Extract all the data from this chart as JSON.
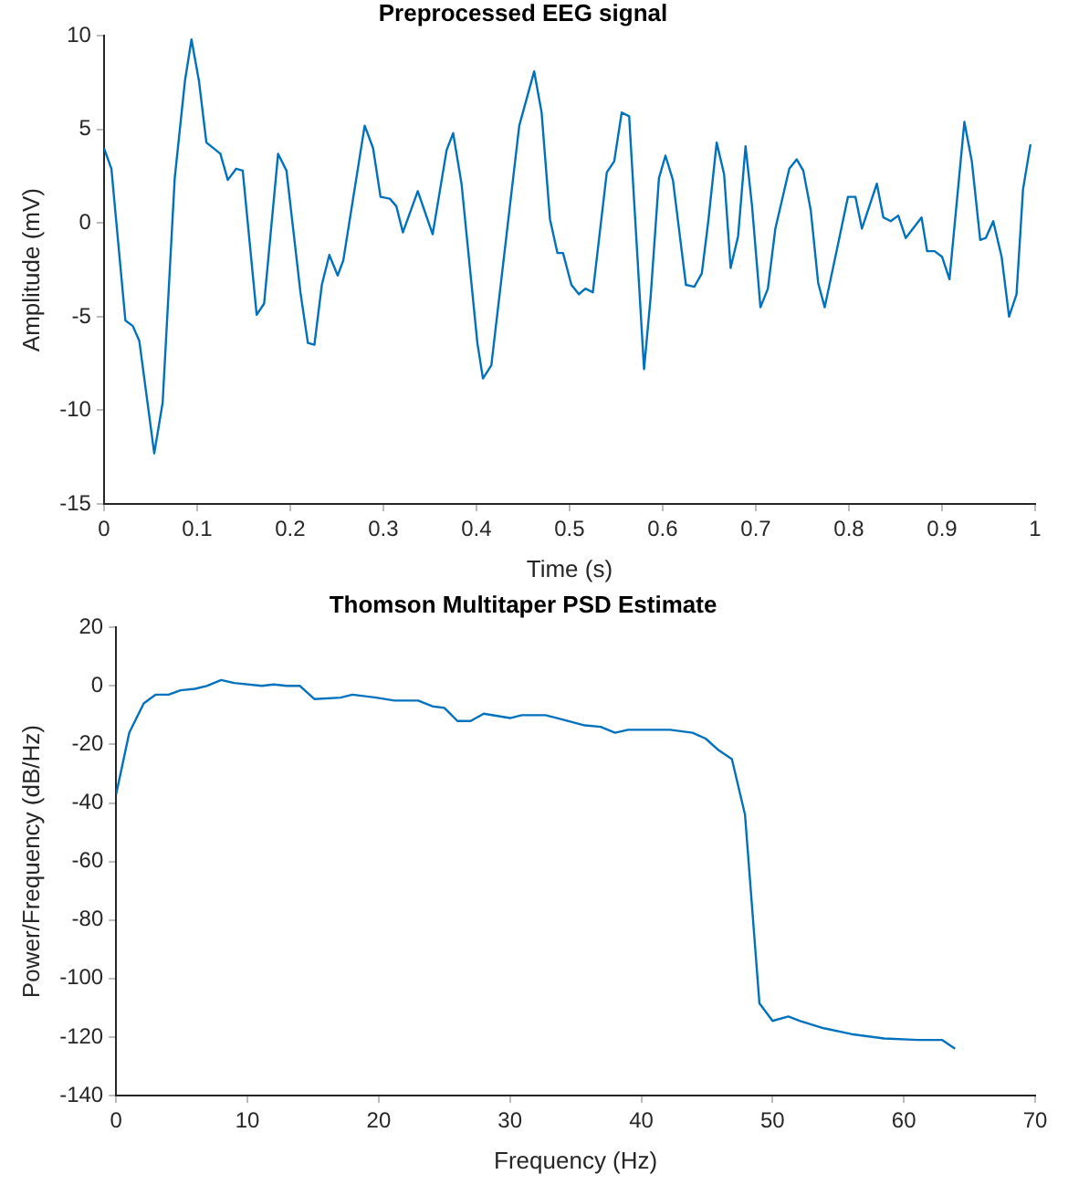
{
  "chart_data": [
    {
      "type": "line",
      "title": "Preprocessed EEG signal",
      "xlabel": "Time (s)",
      "ylabel": "Amplitude (mV)",
      "x": [
        0,
        0.008,
        0.023,
        0.031,
        0.038,
        0.054,
        0.063,
        0.076,
        0.087,
        0.094,
        0.102,
        0.11,
        0.125,
        0.133,
        0.142,
        0.149,
        0.164,
        0.172,
        0.187,
        0.196,
        0.211,
        0.219,
        0.226,
        0.234,
        0.242,
        0.251,
        0.257,
        0.28,
        0.289,
        0.297,
        0.307,
        0.314,
        0.321,
        0.337,
        0.353,
        0.368,
        0.375,
        0.384,
        0.401,
        0.407,
        0.416,
        0.446,
        0.462,
        0.47,
        0.479,
        0.487,
        0.493,
        0.502,
        0.51,
        0.517,
        0.525,
        0.54,
        0.548,
        0.556,
        0.564,
        0.58,
        0.587,
        0.596,
        0.603,
        0.611,
        0.625,
        0.634,
        0.642,
        0.649,
        0.658,
        0.666,
        0.673,
        0.681,
        0.689,
        0.696,
        0.705,
        0.713,
        0.721,
        0.736,
        0.744,
        0.751,
        0.759,
        0.767,
        0.774,
        0.791,
        0.799,
        0.807,
        0.814,
        0.83,
        0.837,
        0.845,
        0.853,
        0.861,
        0.878,
        0.884,
        0.892,
        0.9,
        0.908,
        0.924,
        0.932,
        0.941,
        0.947,
        0.955,
        0.964,
        0.972,
        0.98,
        0.987,
        0.995
      ],
      "series": [
        {
          "color": "#0072bd",
          "values": [
            4.0,
            2.9,
            -5.2,
            -5.5,
            -6.3,
            -12.3,
            -9.6,
            2.4,
            7.6,
            9.8,
            7.6,
            4.3,
            3.7,
            2.3,
            2.9,
            2.8,
            -4.9,
            -4.3,
            3.7,
            2.8,
            -3.7,
            -6.4,
            -6.5,
            -3.3,
            -1.7,
            -2.8,
            -2.0,
            5.2,
            4.0,
            1.4,
            1.3,
            0.9,
            -0.5,
            1.7,
            -0.6,
            3.9,
            4.8,
            2.1,
            -6.4,
            -8.3,
            -7.6,
            5.2,
            8.1,
            5.9,
            0.2,
            -1.6,
            -1.6,
            -3.3,
            -3.8,
            -3.5,
            -3.7,
            2.7,
            3.3,
            5.9,
            5.7,
            -7.8,
            -4.0,
            2.4,
            3.6,
            2.3,
            -3.3,
            -3.4,
            -2.7,
            0.1,
            4.3,
            2.6,
            -2.4,
            -0.7,
            4.1,
            0.9,
            -4.5,
            -3.5,
            -0.3,
            2.9,
            3.4,
            2.8,
            0.7,
            -3.2,
            -4.5,
            -0.5,
            1.4,
            1.4,
            -0.3,
            2.1,
            0.3,
            0.1,
            0.4,
            -0.8,
            0.3,
            -1.5,
            -1.5,
            -1.8,
            -3.0,
            5.4,
            3.3,
            -0.9,
            -0.8,
            0.1,
            -1.8,
            -5.0,
            -3.8,
            1.8,
            4.2
          ]
        }
      ],
      "xlim": [
        0,
        1
      ],
      "xticks": [
        0,
        0.1,
        0.2,
        0.3,
        0.4,
        0.5,
        0.6,
        0.7,
        0.8,
        0.9,
        1
      ],
      "ylim": [
        -15,
        10
      ],
      "yticks": [
        -15,
        -10,
        -5,
        0,
        5,
        10
      ],
      "grid": false,
      "legend": false,
      "marker": "none",
      "line_style": "solid"
    },
    {
      "type": "line",
      "title": "Thomson Multitaper PSD Estimate",
      "xlabel": "Frequency (Hz)",
      "ylabel": "Power/Frequency (dB/Hz)",
      "x": [
        0,
        1.0,
        2.1,
        3.0,
        4.0,
        4.9,
        6.0,
        6.9,
        8.0,
        9.0,
        11.1,
        12.0,
        13.0,
        14.0,
        15.1,
        17.1,
        18.0,
        19.8,
        21.2,
        23.0,
        24.1,
        25.0,
        26.0,
        27.0,
        28.0,
        30.0,
        30.9,
        32.7,
        33.6,
        35.7,
        36.9,
        38.0,
        39.0,
        39.9,
        42.2,
        43.9,
        44.9,
        45.9,
        46.9,
        47.9,
        49.0,
        50.0,
        51.2,
        52.1,
        53.9,
        56.0,
        58.5,
        61.1,
        62.9,
        63.9
      ],
      "series": [
        {
          "color": "#0072bd",
          "values": [
            -37,
            -16,
            -6,
            -3,
            -3,
            -1.5,
            -1,
            0,
            2,
            1,
            0,
            0.5,
            0,
            0,
            -4.5,
            -4,
            -3,
            -4,
            -5,
            -5,
            -7,
            -7.5,
            -12,
            -12,
            -9.5,
            -11,
            -10,
            -10,
            -11,
            -13.5,
            -14,
            -16,
            -15,
            -15,
            -15,
            -16,
            -18,
            -22,
            -25,
            -44,
            -108.5,
            -114.5,
            -113,
            -114.5,
            -117,
            -119,
            -120.5,
            -121,
            -121,
            -124
          ]
        }
      ],
      "xlim": [
        0,
        70
      ],
      "xticks": [
        0,
        10,
        20,
        30,
        40,
        50,
        60,
        70
      ],
      "ylim": [
        -140,
        20
      ],
      "yticks": [
        -140,
        -120,
        -100,
        -80,
        -60,
        -40,
        -20,
        0,
        20
      ],
      "grid": false,
      "legend": false,
      "marker": "none",
      "line_style": "solid"
    }
  ]
}
